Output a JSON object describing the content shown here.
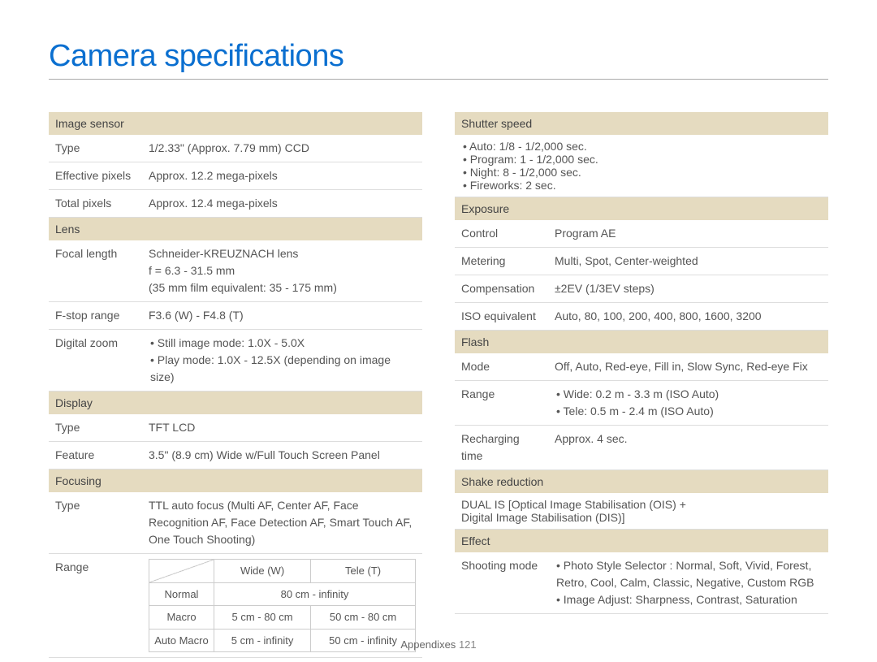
{
  "page_title": "Camera specifications",
  "footer_label": "Appendixes",
  "footer_page": "121",
  "colors": {
    "title": "#0a6fd0",
    "section_bg": "#e5dbc0",
    "border": "#dddddd",
    "text": "#555555"
  },
  "left": {
    "image_sensor": {
      "header": "Image sensor",
      "rows": [
        {
          "label": "Type",
          "value": "1/2.33\" (Approx. 7.79 mm) CCD"
        },
        {
          "label": "Effective pixels",
          "value": "Approx. 12.2 mega-pixels"
        },
        {
          "label": "Total pixels",
          "value": "Approx. 12.4 mega-pixels"
        }
      ]
    },
    "lens": {
      "header": "Lens",
      "focal_label": "Focal length",
      "focal_lines": [
        "Schneider-KREUZNACH lens",
        "f = 6.3 - 31.5 mm",
        "(35 mm film equivalent: 35 - 175 mm)"
      ],
      "fstop_label": "F-stop range",
      "fstop_value": "F3.6 (W) - F4.8 (T)",
      "dz_label": "Digital zoom",
      "dz_items": [
        "Still image mode: 1.0X - 5.0X",
        "Play mode: 1.0X - 12.5X (depending on image size)"
      ]
    },
    "display": {
      "header": "Display",
      "rows": [
        {
          "label": "Type",
          "value": "TFT LCD"
        },
        {
          "label": "Feature",
          "value": "3.5\" (8.9 cm) Wide w/Full Touch Screen Panel"
        }
      ]
    },
    "focusing": {
      "header": "Focusing",
      "type_label": "Type",
      "type_value": "TTL auto focus (Multi AF, Center AF, Face Recognition AF, Face Detection AF, Smart Touch AF, One Touch Shooting)",
      "range_label": "Range",
      "sub_headers": [
        "",
        "Wide (W)",
        "Tele (T)"
      ],
      "sub_rows": [
        {
          "name": "Normal",
          "wide": "80 cm - infinity",
          "tele": "",
          "span": true
        },
        {
          "name": "Macro",
          "wide": "5 cm - 80 cm",
          "tele": "50 cm - 80 cm"
        },
        {
          "name": "Auto Macro",
          "wide": "5 cm - infinity",
          "tele": "50 cm - infinity"
        }
      ]
    }
  },
  "right": {
    "shutter": {
      "header": "Shutter speed",
      "items": [
        "Auto: 1/8 - 1/2,000 sec.",
        "Program: 1 - 1/2,000 sec.",
        "Night: 8 - 1/2,000 sec.",
        "Fireworks: 2 sec."
      ]
    },
    "exposure": {
      "header": "Exposure",
      "rows": [
        {
          "label": "Control",
          "value": "Program AE"
        },
        {
          "label": "Metering",
          "value": "Multi, Spot, Center-weighted"
        },
        {
          "label": "Compensation",
          "value": "±2EV (1/3EV steps)"
        },
        {
          "label": "ISO equivalent",
          "value": "Auto, 80, 100, 200, 400, 800, 1600, 3200"
        }
      ]
    },
    "flash": {
      "header": "Flash",
      "mode_label": "Mode",
      "mode_value": "Off, Auto, Red-eye, Fill in, Slow Sync, Red-eye Fix",
      "range_label": "Range",
      "range_items": [
        "Wide: 0.2 m - 3.3 m (ISO Auto)",
        "Tele: 0.5 m - 2.4 m (ISO Auto)"
      ],
      "recharge_label": "Recharging time",
      "recharge_value": "Approx. 4 sec."
    },
    "shake": {
      "header": "Shake reduction",
      "lines": [
        "DUAL IS [Optical Image Stabilisation (OIS) +",
        "Digital Image Stabilisation (DIS)]"
      ]
    },
    "effect": {
      "header": "Effect",
      "label": "Shooting mode",
      "items": [
        "Photo Style Selector : Normal, Soft, Vivid, Forest, Retro, Cool, Calm, Classic, Negative, Custom RGB",
        "Image Adjust: Sharpness, Contrast, Saturation"
      ]
    }
  }
}
